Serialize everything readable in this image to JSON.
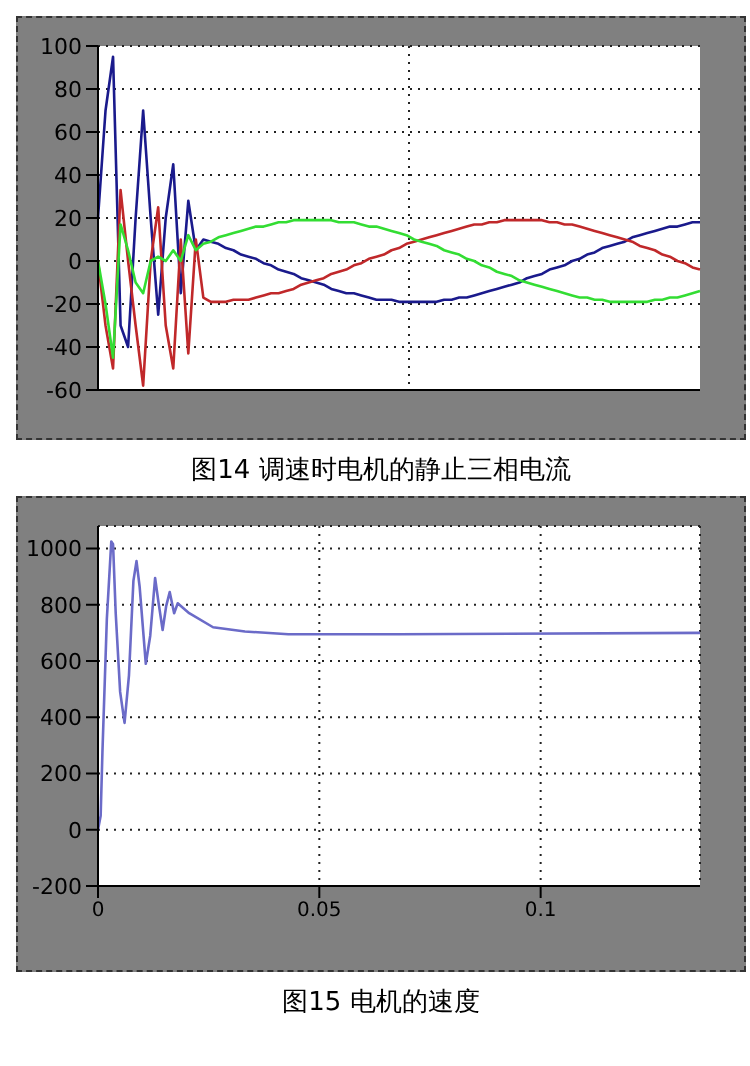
{
  "chart_data": [
    {
      "type": "line",
      "title": "图14 调速时电机的静止三相电流",
      "categories": [
        null,
        null,
        null,
        null,
        null,
        null,
        null,
        null,
        null,
        null,
        null,
        null,
        null,
        null,
        null,
        null,
        null,
        null,
        null,
        null,
        null,
        null,
        null,
        null,
        null,
        null,
        null,
        null,
        null,
        null,
        null,
        null,
        null,
        null,
        null,
        null,
        null,
        null,
        null,
        null,
        null,
        null,
        null,
        null,
        null,
        null,
        null,
        null,
        null,
        null,
        null,
        null,
        null,
        null,
        null,
        null,
        null,
        null,
        null,
        null,
        null,
        null,
        null,
        null,
        null,
        null,
        null,
        null,
        null,
        null,
        null,
        null,
        null,
        null,
        null,
        null,
        null,
        null,
        null,
        null,
        null
      ],
      "series": [
        {
          "color": "#1a1a8c",
          "values": [
            20,
            70,
            95,
            -30,
            -40,
            20,
            70,
            20,
            -25,
            20,
            45,
            -15,
            28,
            5,
            10,
            9,
            8,
            6,
            5,
            3,
            2,
            1,
            -1,
            -2,
            -4,
            -5,
            -6,
            -8,
            -9,
            -10,
            -11,
            -13,
            -14,
            -15,
            -15,
            -16,
            -17,
            -18,
            -18,
            -18,
            -19,
            -19,
            -19,
            -19,
            -19,
            -19,
            -18,
            -18,
            -17,
            -17,
            -16,
            -15,
            -14,
            -13,
            -12,
            -11,
            -10,
            -8,
            -7,
            -6,
            -4,
            -3,
            -2,
            0,
            1,
            3,
            4,
            6,
            7,
            8,
            9,
            11,
            12,
            13,
            14,
            15,
            16,
            16,
            17,
            18,
            18
          ]
        },
        {
          "color": "#c0282a",
          "values": [
            0,
            -30,
            -50,
            33,
            0,
            -30,
            -58,
            0,
            25,
            -30,
            -50,
            10,
            -43,
            10,
            -17,
            -19,
            -19,
            -19,
            -18,
            -18,
            -18,
            -17,
            -16,
            -15,
            -15,
            -14,
            -13,
            -11,
            -10,
            -9,
            -8,
            -6,
            -5,
            -4,
            -2,
            -1,
            1,
            2,
            3,
            5,
            6,
            8,
            9,
            10,
            11,
            12,
            13,
            14,
            15,
            16,
            17,
            17,
            18,
            18,
            19,
            19,
            19,
            19,
            19,
            19,
            18,
            18,
            17,
            17,
            16,
            15,
            14,
            13,
            12,
            11,
            10,
            9,
            7,
            6,
            5,
            3,
            2,
            0,
            -1,
            -3,
            -4
          ]
        },
        {
          "color": "#33dd33",
          "values": [
            0,
            -20,
            -45,
            17,
            5,
            -10,
            -15,
            0,
            2,
            0,
            5,
            0,
            12,
            5,
            8,
            9,
            11,
            12,
            13,
            14,
            15,
            16,
            16,
            17,
            18,
            18,
            19,
            19,
            19,
            19,
            19,
            19,
            18,
            18,
            18,
            17,
            16,
            16,
            15,
            14,
            13,
            12,
            10,
            9,
            8,
            7,
            5,
            4,
            3,
            1,
            0,
            -2,
            -3,
            -5,
            -6,
            -7,
            -9,
            -10,
            -11,
            -12,
            -13,
            -14,
            -15,
            -16,
            -17,
            -17,
            -18,
            -18,
            -19,
            -19,
            -19,
            -19,
            -19,
            -19,
            -18,
            -18,
            -17,
            -17,
            -16,
            -15,
            -14
          ]
        }
      ],
      "ylim": [
        -60,
        100
      ],
      "yticks": [
        -60,
        -40,
        -20,
        0,
        20,
        40,
        60,
        80,
        100
      ],
      "grid": true,
      "tick_labels": "y"
    },
    {
      "type": "line",
      "title": "图15 电机的速度",
      "x": [
        0,
        0.0006,
        0.001,
        0.002,
        0.003,
        0.0034,
        0.004,
        0.005,
        0.006,
        0.007,
        0.008,
        0.0087,
        0.0094,
        0.0108,
        0.0118,
        0.0129,
        0.0137,
        0.0146,
        0.0154,
        0.0162,
        0.0172,
        0.018,
        0.0206,
        0.026,
        0.0332,
        0.043,
        0.068,
        0.136
      ],
      "series": [
        {
          "color": "#6b6bc8",
          "values": [
            0,
            50,
            275,
            750,
            1025,
            1015,
            770,
            490,
            380,
            550,
            885,
            955,
            865,
            590,
            690,
            895,
            805,
            710,
            795,
            845,
            770,
            805,
            770,
            720,
            705,
            695,
            695,
            700
          ]
        }
      ],
      "xlim": [
        0,
        0.136
      ],
      "xticks": [
        0,
        0.05,
        0.1
      ],
      "ylim": [
        -200,
        1080
      ],
      "yticks": [
        -200,
        0,
        200,
        400,
        600,
        800,
        1000
      ],
      "grid": true
    }
  ]
}
